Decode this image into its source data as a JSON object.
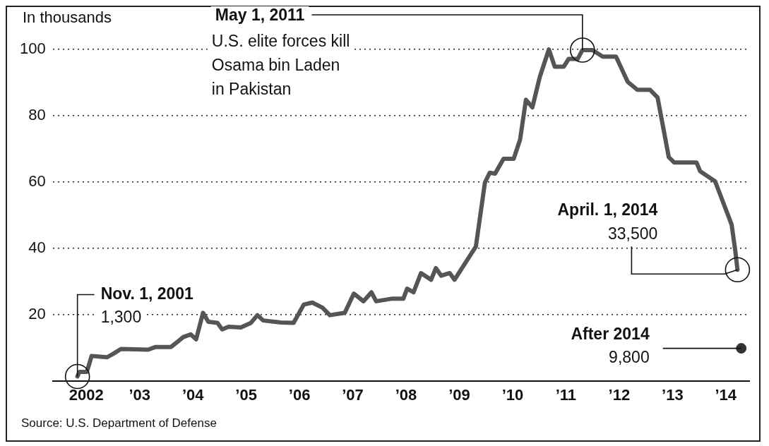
{
  "chart_data": {
    "type": "line",
    "ylabel": "In thousands",
    "xlim": [
      2001.37,
      2014.44
    ],
    "xticks": [
      2002,
      {
        "value": 2003,
        "label": "’03"
      },
      {
        "value": 2004,
        "label": "’04"
      },
      {
        "value": 2005,
        "label": "’05"
      },
      {
        "value": 2006,
        "label": "’06"
      },
      {
        "value": 2007,
        "label": "’07"
      },
      {
        "value": 2008,
        "label": "’08"
      },
      {
        "value": 2009,
        "label": "’09"
      },
      {
        "value": 2010,
        "label": "’10"
      },
      {
        "value": 2011,
        "label": "’11"
      },
      {
        "value": 2012,
        "label": "’12"
      },
      {
        "value": 2013,
        "label": "’13"
      },
      {
        "value": 2014,
        "label": "’14"
      }
    ],
    "ylim": [
      0,
      100
    ],
    "yticks": [
      20,
      40,
      60,
      80,
      100
    ],
    "grid": "y",
    "legend": false,
    "series": [
      {
        "type": "line",
        "color": "#555555",
        "x": [
          2001.833,
          2001.87,
          2002.01,
          2002.1,
          2002.39,
          2002.51,
          2002.65,
          2003.16,
          2003.3,
          2003.59,
          2003.82,
          2003.96,
          2004.06,
          2004.19,
          2004.29,
          2004.46,
          2004.55,
          2004.67,
          2004.9,
          2005.09,
          2005.21,
          2005.32,
          2005.65,
          2005.89,
          2006.08,
          2006.24,
          2006.43,
          2006.57,
          2006.85,
          2007.02,
          2007.2,
          2007.35,
          2007.44,
          2007.74,
          2007.95,
          2008.02,
          2008.14,
          2008.28,
          2008.47,
          2008.56,
          2008.66,
          2008.82,
          2008.91,
          2009.31,
          2009.48,
          2009.57,
          2009.67,
          2009.83,
          2010.02,
          2010.14,
          2010.25,
          2010.37,
          2010.51,
          2010.68,
          2010.79,
          2010.96,
          2011.05,
          2011.22,
          2011.31,
          2011.5,
          2011.69,
          2011.94,
          2012.16,
          2012.34,
          2012.58,
          2012.72,
          2012.93,
          2013.03,
          2013.45,
          2013.52,
          2013.8,
          2014.11,
          2014.18,
          2014.22
        ],
        "values": [
          1.3,
          2.7,
          2.7,
          7.5,
          7.1,
          8.2,
          9.6,
          9.4,
          10.2,
          10.2,
          13.2,
          14,
          12.5,
          20.5,
          17.8,
          17.5,
          15.5,
          16.3,
          16.1,
          17.5,
          19.8,
          18.2,
          17.6,
          17.5,
          23,
          23.6,
          22.1,
          19.8,
          20.5,
          26.3,
          24,
          26.7,
          24,
          24.8,
          24.8,
          27.8,
          26.7,
          32.5,
          30.5,
          34,
          31.7,
          32.5,
          30.5,
          40.5,
          59.8,
          62.8,
          62.5,
          67,
          67,
          72.8,
          84.8,
          82.5,
          91.7,
          100,
          94.8,
          94.8,
          97.1,
          97.1,
          99.8,
          99.8,
          97.8,
          97.8,
          90.2,
          87.8,
          87.8,
          85.5,
          67.5,
          65.9,
          65.9,
          63.2,
          60.2,
          47.1,
          39,
          33.5
        ]
      },
      {
        "type": "scatter",
        "color": "#333333",
        "x": [
          2014.29
        ],
        "values": [
          9.8
        ]
      }
    ],
    "annotations": [
      {
        "text": "May 1, 2011",
        "x": 2011.31,
        "y": 99.8
      },
      "U.S. elite forces kill Osama bin Laden in Pakistan",
      {
        "text": "Nov. 1, 2001",
        "x": 2001.833,
        "y": 1.3
      },
      "1,300",
      "April. 1, 2014",
      {
        "text": "33,500",
        "x": 2014.22,
        "y": 33.5
      },
      {
        "text": "After 2014",
        "x": 2014.29,
        "y": 9.8
      },
      "9,800",
      "Source: U.S. Department of Defense"
    ]
  }
}
